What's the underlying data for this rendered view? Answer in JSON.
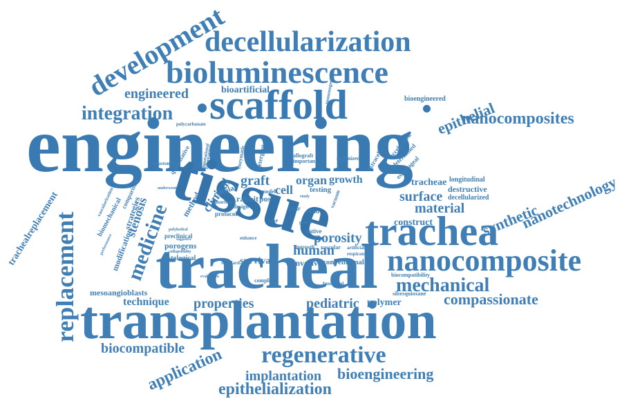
{
  "palette": {
    "primary": "#3f7fb5",
    "dark": "#2f6ea8",
    "light": "#5c93c4"
  },
  "words": [
    {
      "text": "engineering"
    },
    {
      "text": "transplantation"
    },
    {
      "text": "tissue"
    },
    {
      "text": "tracheal"
    },
    {
      "text": "scaffold"
    },
    {
      "text": "trachea"
    },
    {
      "text": "nanocomposite"
    },
    {
      "text": "bioluminescence"
    },
    {
      "text": "decellularization"
    },
    {
      "text": "development"
    },
    {
      "text": "replacement"
    },
    {
      "text": "regenerative"
    },
    {
      "text": "integration"
    },
    {
      "text": "mechanical"
    },
    {
      "text": "medicine"
    },
    {
      "text": "nanocomposites"
    },
    {
      "text": "bioengineering"
    },
    {
      "text": "epithelialization"
    },
    {
      "text": "application"
    },
    {
      "text": "compassionate"
    },
    {
      "text": "epithelial"
    },
    {
      "text": "engineered"
    },
    {
      "text": "nanotechnology"
    },
    {
      "text": "synthetic"
    },
    {
      "text": "material"
    },
    {
      "text": "human"
    },
    {
      "text": "porosity"
    },
    {
      "text": "surface"
    },
    {
      "text": "properties"
    },
    {
      "text": "pediatric"
    },
    {
      "text": "biocompatible"
    },
    {
      "text": "implantation"
    },
    {
      "text": "stenosis"
    },
    {
      "text": "clinical"
    },
    {
      "text": "graft"
    },
    {
      "text": "organ"
    },
    {
      "text": "growth"
    },
    {
      "text": "cell"
    },
    {
      "text": "technique"
    },
    {
      "text": "bioartificial"
    },
    {
      "text": "trachealreplacement"
    },
    {
      "text": "survival"
    },
    {
      "text": "construct"
    },
    {
      "text": "polymer"
    },
    {
      "text": "tracheae"
    },
    {
      "text": "destructive"
    },
    {
      "text": "decellularized"
    },
    {
      "text": "longitudinal"
    },
    {
      "text": "mesoangioblasts"
    },
    {
      "text": "porogens"
    },
    {
      "text": "modification"
    },
    {
      "text": "strategies"
    },
    {
      "text": "method"
    },
    {
      "text": "bioengineered"
    },
    {
      "text": "invasive"
    },
    {
      "text": "conventional"
    },
    {
      "text": "rabbit"
    },
    {
      "text": "pos"
    },
    {
      "text": "testing"
    },
    {
      "text": "cellular"
    },
    {
      "text": "histological"
    },
    {
      "text": "preclinical"
    },
    {
      "text": "biomechanical"
    },
    {
      "text": "quantitative"
    },
    {
      "text": "extracellular"
    },
    {
      "text": "accelerated"
    },
    {
      "text": "determined"
    },
    {
      "text": "esophageal"
    },
    {
      "text": "silsesquioxane"
    },
    {
      "text": "biocompatibility"
    },
    {
      "text": "polycarbonate"
    },
    {
      "text": "vascularization"
    },
    {
      "text": "comparison"
    },
    {
      "text": "detergent"
    },
    {
      "text": "allograft"
    },
    {
      "text": "important"
    },
    {
      "text": "optimized"
    },
    {
      "text": "bioreactor"
    },
    {
      "text": "computational"
    },
    {
      "text": "enzymatic"
    },
    {
      "text": "immunogenic"
    },
    {
      "text": "native"
    },
    {
      "text": "child"
    },
    {
      "text": "year"
    },
    {
      "text": "vascular"
    },
    {
      "text": "respiratory"
    },
    {
      "text": "artificial"
    },
    {
      "text": "compliant"
    },
    {
      "text": "functional"
    },
    {
      "text": "protocol"
    },
    {
      "text": "design"
    },
    {
      "text": "model"
    },
    {
      "text": "morbidity"
    },
    {
      "text": "anastomotic"
    },
    {
      "text": "underwent"
    },
    {
      "text": "polyhedral"
    },
    {
      "text": "collapsibility"
    },
    {
      "text": "enhance"
    },
    {
      "text": "evaluation"
    },
    {
      "text": "standard"
    },
    {
      "text": "performance"
    },
    {
      "text": "ingrowth"
    },
    {
      "text": "vacuum"
    },
    {
      "text": "case"
    },
    {
      "text": "study"
    },
    {
      "text": "patient"
    },
    {
      "text": "suggestive"
    }
  ]
}
